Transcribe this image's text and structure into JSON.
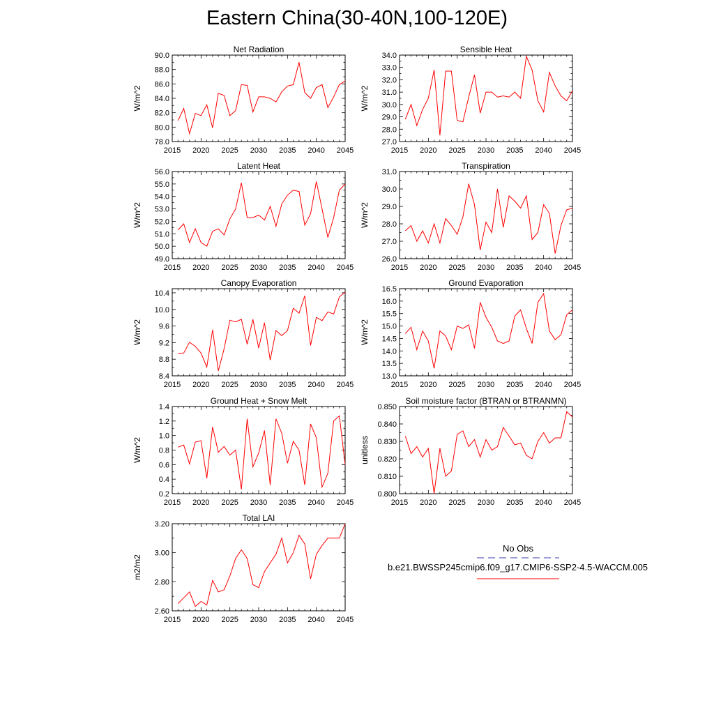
{
  "title": "Eastern China(30-40N,100-120E)",
  "legend": {
    "obs_label": "No Obs",
    "obs_style": "dashed",
    "obs_color": "#3a3ab0",
    "model_label": "b.e21.BWSSP245cmip6.f09_g17.CMIP6-SSP2-4.5-WACCM.005",
    "model_color": "#ff0000"
  },
  "chart_data": [
    {
      "type": "line",
      "title": "Net Radiation",
      "ylabel": "W/m^2",
      "xlabel": "",
      "xlim": [
        2015,
        2045
      ],
      "ylim": [
        78.0,
        90.0
      ],
      "xticks": [
        2015,
        2020,
        2025,
        2030,
        2035,
        2040,
        2045
      ],
      "yticks": [
        "78.0",
        "80.0",
        "82.0",
        "84.0",
        "86.0",
        "88.0",
        "90.0"
      ],
      "series": [
        {
          "name": "b.e21.BWSSP245cmip6.f09_g17.CMIP6-SSP2-4.5-WACCM.005",
          "color": "#ff0000",
          "x": [
            2016,
            2017,
            2018,
            2019,
            2020,
            2021,
            2022,
            2023,
            2024,
            2025,
            2026,
            2027,
            2028,
            2029,
            2030,
            2031,
            2032,
            2033,
            2034,
            2035,
            2036,
            2037,
            2038,
            2039,
            2040,
            2041,
            2042,
            2043,
            2044,
            2045
          ],
          "values": [
            80.9,
            82.6,
            79.1,
            81.9,
            81.6,
            83.1,
            79.9,
            84.7,
            84.4,
            81.6,
            82.3,
            85.9,
            85.8,
            82.1,
            84.2,
            84.2,
            84.0,
            83.5,
            84.9,
            85.7,
            85.9,
            89.0,
            84.8,
            84.0,
            85.5,
            85.9,
            82.7,
            84.2,
            85.9,
            86.4
          ]
        }
      ]
    },
    {
      "type": "line",
      "title": "Sensible Heat",
      "ylabel": "W/m^2",
      "xlabel": "",
      "xlim": [
        2015,
        2045
      ],
      "ylim": [
        27.0,
        34.0
      ],
      "xticks": [
        2015,
        2020,
        2025,
        2030,
        2035,
        2040,
        2045
      ],
      "yticks": [
        "27.0",
        "28.0",
        "29.0",
        "30.0",
        "31.0",
        "32.0",
        "33.0",
        "34.0"
      ],
      "series": [
        {
          "name": "b.e21.BWSSP245cmip6.f09_g17.CMIP6-SSP2-4.5-WACCM.005",
          "color": "#ff0000",
          "x": [
            2016,
            2017,
            2018,
            2019,
            2020,
            2021,
            2022,
            2023,
            2024,
            2025,
            2026,
            2027,
            2028,
            2029,
            2030,
            2031,
            2032,
            2033,
            2034,
            2035,
            2036,
            2037,
            2038,
            2039,
            2040,
            2041,
            2042,
            2043,
            2044,
            2045
          ],
          "values": [
            28.8,
            30.0,
            28.3,
            29.6,
            30.5,
            32.8,
            27.5,
            32.7,
            32.7,
            28.7,
            28.6,
            30.6,
            32.4,
            29.3,
            31.0,
            31.0,
            30.6,
            30.7,
            30.6,
            31.0,
            30.5,
            33.9,
            32.8,
            30.3,
            29.4,
            32.6,
            31.5,
            30.7,
            30.3,
            31.1
          ]
        }
      ]
    },
    {
      "type": "line",
      "title": "Latent Heat",
      "ylabel": "W/m^2",
      "xlabel": "",
      "xlim": [
        2015,
        2045
      ],
      "ylim": [
        49.0,
        56.0
      ],
      "xticks": [
        2015,
        2020,
        2025,
        2030,
        2035,
        2040,
        2045
      ],
      "yticks": [
        "49.0",
        "50.0",
        "51.0",
        "52.0",
        "53.0",
        "54.0",
        "55.0",
        "56.0"
      ],
      "series": [
        {
          "name": "b.e21.BWSSP245cmip6.f09_g17.CMIP6-SSP2-4.5-WACCM.005",
          "color": "#ff0000",
          "x": [
            2016,
            2017,
            2018,
            2019,
            2020,
            2021,
            2022,
            2023,
            2024,
            2025,
            2026,
            2027,
            2028,
            2029,
            2030,
            2031,
            2032,
            2033,
            2034,
            2035,
            2036,
            2037,
            2038,
            2039,
            2040,
            2041,
            2042,
            2043,
            2044,
            2045
          ],
          "values": [
            51.3,
            51.8,
            50.3,
            51.4,
            50.3,
            50.0,
            51.2,
            51.4,
            50.9,
            52.2,
            53.0,
            55.1,
            52.3,
            52.3,
            52.5,
            52.1,
            53.2,
            51.6,
            53.4,
            54.1,
            54.5,
            54.4,
            51.7,
            52.6,
            55.2,
            53.0,
            50.7,
            52.3,
            54.5,
            55.0
          ]
        }
      ]
    },
    {
      "type": "line",
      "title": "Transpiration",
      "ylabel": "W/m^2",
      "xlabel": "",
      "xlim": [
        2015,
        2045
      ],
      "ylim": [
        26.0,
        31.0
      ],
      "xticks": [
        2015,
        2020,
        2025,
        2030,
        2035,
        2040,
        2045
      ],
      "yticks": [
        "26.0",
        "27.0",
        "28.0",
        "29.0",
        "30.0",
        "31.0"
      ],
      "series": [
        {
          "name": "b.e21.BWSSP245cmip6.f09_g17.CMIP6-SSP2-4.5-WACCM.005",
          "color": "#ff0000",
          "x": [
            2016,
            2017,
            2018,
            2019,
            2020,
            2021,
            2022,
            2023,
            2024,
            2025,
            2026,
            2027,
            2028,
            2029,
            2030,
            2031,
            2032,
            2033,
            2034,
            2035,
            2036,
            2037,
            2038,
            2039,
            2040,
            2041,
            2042,
            2043,
            2044,
            2045
          ],
          "values": [
            27.6,
            27.9,
            27.0,
            27.6,
            26.9,
            28.0,
            26.9,
            28.3,
            27.9,
            27.4,
            28.4,
            30.3,
            29.1,
            26.5,
            28.1,
            27.5,
            30.0,
            27.8,
            29.6,
            29.3,
            28.9,
            29.6,
            27.1,
            27.5,
            29.1,
            28.6,
            26.3,
            27.9,
            28.8,
            28.9
          ]
        }
      ]
    },
    {
      "type": "line",
      "title": "Canopy Evaporation",
      "ylabel": "W/m^2",
      "xlabel": "",
      "xlim": [
        2015,
        2045
      ],
      "ylim": [
        8.4,
        10.5
      ],
      "xticks": [
        2015,
        2020,
        2025,
        2030,
        2035,
        2040,
        2045
      ],
      "yticks": [
        "8.4",
        "8.8",
        "9.2",
        "9.6",
        "10.0",
        "10.4"
      ],
      "series": [
        {
          "name": "b.e21.BWSSP245cmip6.f09_g17.CMIP6-SSP2-4.5-WACCM.005",
          "color": "#ff0000",
          "x": [
            2016,
            2017,
            2018,
            2019,
            2020,
            2021,
            2022,
            2023,
            2024,
            2025,
            2026,
            2027,
            2028,
            2029,
            2030,
            2031,
            2032,
            2033,
            2034,
            2035,
            2036,
            2037,
            2038,
            2039,
            2040,
            2041,
            2042,
            2043,
            2044,
            2045
          ],
          "values": [
            8.94,
            8.95,
            9.21,
            9.11,
            8.95,
            8.61,
            9.51,
            8.52,
            9.05,
            9.74,
            9.7,
            9.76,
            9.16,
            9.76,
            9.07,
            9.68,
            8.78,
            9.49,
            9.37,
            9.49,
            10.03,
            9.91,
            10.33,
            9.13,
            9.81,
            9.73,
            9.94,
            9.89,
            10.3,
            10.42
          ]
        }
      ]
    },
    {
      "type": "line",
      "title": "Ground Evaporation",
      "ylabel": "W/m^2",
      "xlabel": "",
      "xlim": [
        2015,
        2045
      ],
      "ylim": [
        13.0,
        16.5
      ],
      "xticks": [
        2015,
        2020,
        2025,
        2030,
        2035,
        2040,
        2045
      ],
      "yticks": [
        "13.0",
        "13.5",
        "14.0",
        "14.5",
        "15.0",
        "15.5",
        "16.0",
        "16.5"
      ],
      "series": [
        {
          "name": "b.e21.BWSSP245cmip6.f09_g17.CMIP6-SSP2-4.5-WACCM.005",
          "color": "#ff0000",
          "x": [
            2016,
            2017,
            2018,
            2019,
            2020,
            2021,
            2022,
            2023,
            2024,
            2025,
            2026,
            2027,
            2028,
            2029,
            2030,
            2031,
            2032,
            2033,
            2034,
            2035,
            2036,
            2037,
            2038,
            2039,
            2040,
            2041,
            2042,
            2043,
            2044,
            2045
          ],
          "values": [
            14.7,
            14.95,
            14.05,
            14.8,
            14.4,
            13.3,
            14.8,
            14.6,
            14.05,
            15.0,
            14.9,
            15.05,
            14.1,
            15.95,
            15.35,
            14.95,
            14.4,
            14.3,
            14.4,
            15.4,
            15.65,
            14.9,
            14.3,
            15.95,
            16.3,
            14.8,
            14.45,
            14.65,
            15.45,
            15.65
          ]
        }
      ]
    },
    {
      "type": "line",
      "title": "Ground Heat + Snow Melt",
      "ylabel": "W/m^2",
      "xlabel": "",
      "xlim": [
        2015,
        2045
      ],
      "ylim": [
        0.2,
        1.4
      ],
      "xticks": [
        2015,
        2020,
        2025,
        2030,
        2035,
        2040,
        2045
      ],
      "yticks": [
        "0.2",
        "0.4",
        "0.6",
        "0.8",
        "1.0",
        "1.2",
        "1.4"
      ],
      "series": [
        {
          "name": "b.e21.BWSSP245cmip6.f09_g17.CMIP6-SSP2-4.5-WACCM.005",
          "color": "#ff0000",
          "x": [
            2016,
            2017,
            2018,
            2019,
            2020,
            2021,
            2022,
            2023,
            2024,
            2025,
            2026,
            2027,
            2028,
            2029,
            2030,
            2031,
            2032,
            2033,
            2034,
            2035,
            2036,
            2037,
            2038,
            2039,
            2040,
            2041,
            2042,
            2043,
            2044,
            2045
          ],
          "values": [
            0.84,
            0.87,
            0.61,
            0.91,
            0.93,
            0.41,
            1.12,
            0.77,
            0.85,
            0.73,
            0.8,
            0.26,
            1.23,
            0.57,
            0.76,
            1.07,
            0.32,
            1.23,
            1.03,
            0.62,
            0.92,
            0.8,
            0.32,
            1.16,
            0.97,
            0.29,
            0.48,
            1.2,
            1.27,
            0.6
          ]
        }
      ]
    },
    {
      "type": "line",
      "title": "Soil moisture factor (BTRAN or BTRANMN)",
      "ylabel": "unitless",
      "xlabel": "",
      "xlim": [
        2015,
        2045
      ],
      "ylim": [
        0.8,
        0.85
      ],
      "xticks": [
        2015,
        2020,
        2025,
        2030,
        2035,
        2040,
        2045
      ],
      "yticks": [
        "0.800",
        "0.810",
        "0.820",
        "0.830",
        "0.840",
        "0.850"
      ],
      "series": [
        {
          "name": "b.e21.BWSSP245cmip6.f09_g17.CMIP6-SSP2-4.5-WACCM.005",
          "color": "#ff0000",
          "x": [
            2016,
            2017,
            2018,
            2019,
            2020,
            2021,
            2022,
            2023,
            2024,
            2025,
            2026,
            2027,
            2028,
            2029,
            2030,
            2031,
            2032,
            2033,
            2034,
            2035,
            2036,
            2037,
            2038,
            2039,
            2040,
            2041,
            2042,
            2043,
            2044,
            2045
          ],
          "values": [
            0.833,
            0.823,
            0.827,
            0.821,
            0.826,
            0.8,
            0.826,
            0.81,
            0.813,
            0.834,
            0.836,
            0.827,
            0.831,
            0.821,
            0.831,
            0.825,
            0.827,
            0.838,
            0.833,
            0.828,
            0.829,
            0.822,
            0.82,
            0.83,
            0.835,
            0.829,
            0.832,
            0.832,
            0.847,
            0.844
          ]
        }
      ]
    },
    {
      "type": "line",
      "title": "Total LAI",
      "ylabel": "m2/m2",
      "xlabel": "",
      "xlim": [
        2015,
        2045
      ],
      "ylim": [
        2.6,
        3.2
      ],
      "xticks": [
        2015,
        2020,
        2025,
        2030,
        2035,
        2040,
        2045
      ],
      "yticks": [
        "2.60",
        "2.80",
        "3.00",
        "3.20"
      ],
      "series": [
        {
          "name": "b.e21.BWSSP245cmip6.f09_g17.CMIP6-SSP2-4.5-WACCM.005",
          "color": "#ff0000",
          "x": [
            2016,
            2017,
            2018,
            2019,
            2020,
            2021,
            2022,
            2023,
            2024,
            2025,
            2026,
            2027,
            2028,
            2029,
            2030,
            2031,
            2032,
            2033,
            2034,
            2035,
            2036,
            2037,
            2038,
            2039,
            2040,
            2041,
            2042,
            2043,
            2044,
            2045
          ],
          "values": [
            2.65,
            2.69,
            2.73,
            2.63,
            2.665,
            2.64,
            2.81,
            2.73,
            2.745,
            2.84,
            2.96,
            3.02,
            2.96,
            2.78,
            2.76,
            2.87,
            2.93,
            2.99,
            3.1,
            2.93,
            3.0,
            3.12,
            3.06,
            2.82,
            2.99,
            3.05,
            3.1,
            3.1,
            3.1,
            3.21
          ]
        }
      ]
    }
  ]
}
